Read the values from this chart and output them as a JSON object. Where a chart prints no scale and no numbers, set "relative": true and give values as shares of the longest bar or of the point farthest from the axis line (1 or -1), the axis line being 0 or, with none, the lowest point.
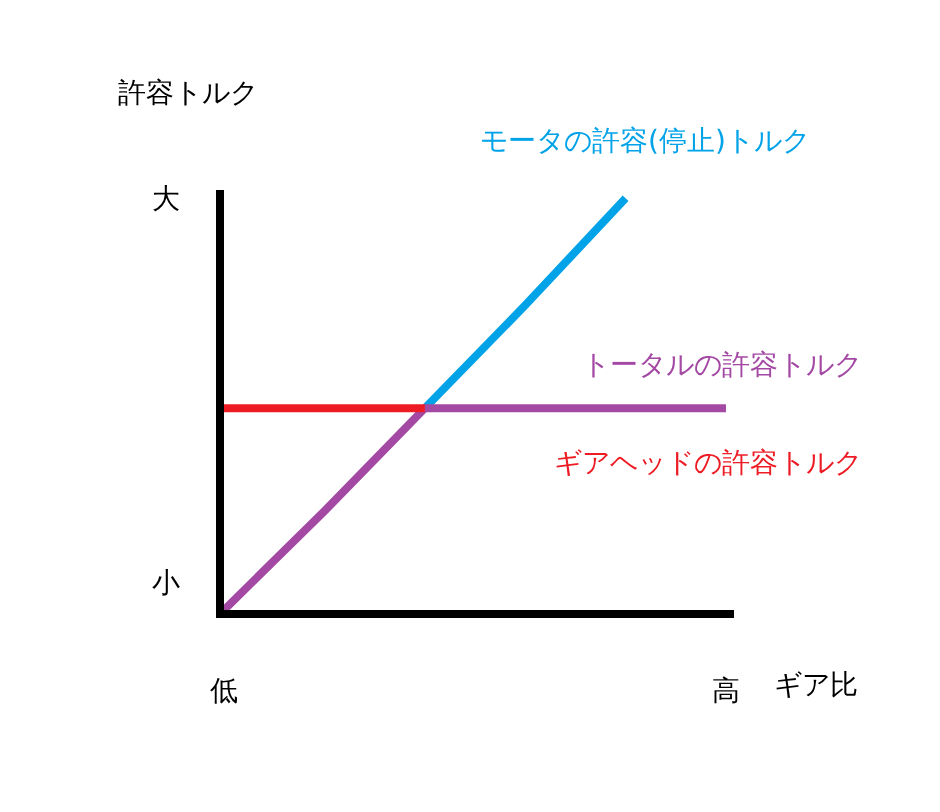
{
  "chart_data": {
    "type": "line",
    "relative": true,
    "xlabel": "ギア比",
    "ylabel": "許容トルク",
    "categories": [
      "低",
      null,
      null,
      null,
      null,
      "高"
    ],
    "annotations": [
      "大",
      "小"
    ],
    "grid": false,
    "legend": false,
    "marker": "none",
    "line_style": "solid",
    "series": [
      {
        "name": "モータの許容(停止)トルク",
        "color": "#00a2e8",
        "values": [
          null,
          null,
          0.49,
          0.74,
          1.0,
          null
        ]
      },
      {
        "name": "トータルの許容トルク",
        "color": "#a349a4",
        "values": [
          0,
          0.24,
          0.49,
          0.49,
          0.49,
          0.49
        ]
      },
      {
        "name": "ギアヘッドの許容トルク",
        "color": "#ed1c24",
        "values": [
          0.49,
          0.49,
          0.49,
          null,
          null,
          null
        ]
      }
    ]
  }
}
